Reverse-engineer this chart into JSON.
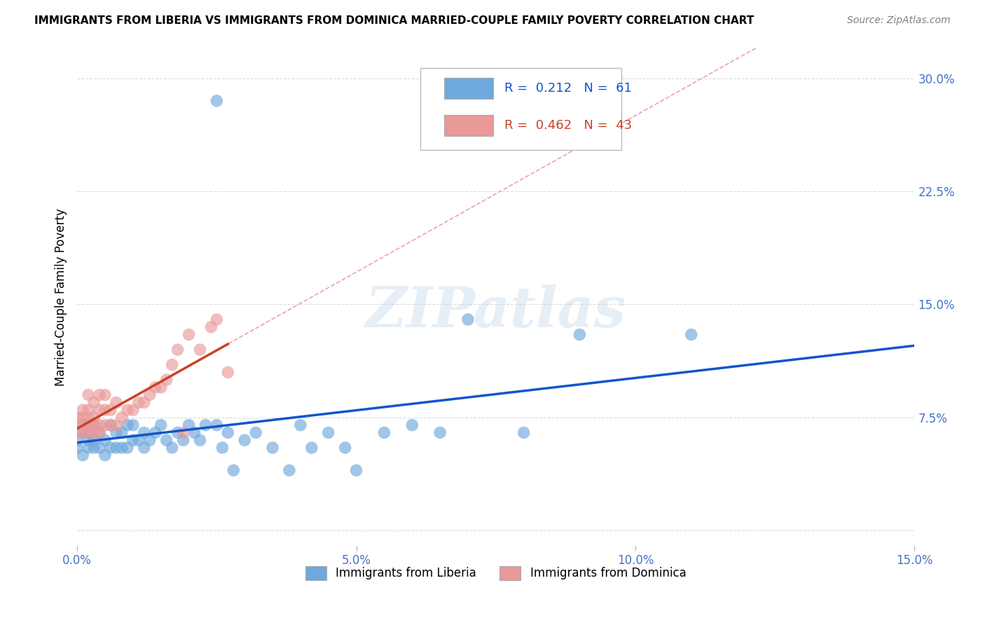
{
  "title": "IMMIGRANTS FROM LIBERIA VS IMMIGRANTS FROM DOMINICA MARRIED-COUPLE FAMILY POVERTY CORRELATION CHART",
  "source": "Source: ZipAtlas.com",
  "tick_color": "#4472c4",
  "ylabel": "Married-Couple Family Poverty",
  "xlim": [
    0.0,
    0.15
  ],
  "ylim": [
    -0.01,
    0.32
  ],
  "xticks": [
    0.0,
    0.05,
    0.1,
    0.15
  ],
  "xticklabels": [
    "0.0%",
    "5.0%",
    "10.0%",
    "15.0%"
  ],
  "yticks": [
    0.0,
    0.075,
    0.15,
    0.225,
    0.3
  ],
  "yticklabels": [
    "",
    "7.5%",
    "15.0%",
    "22.5%",
    "30.0%"
  ],
  "liberia_R": 0.212,
  "liberia_N": 61,
  "dominica_R": 0.462,
  "dominica_N": 43,
  "liberia_color": "#6fa8dc",
  "dominica_color": "#ea9999",
  "liberia_line_color": "#1155cc",
  "dominica_line_color": "#cc4125",
  "dominica_dash_color": "#e06666",
  "grid_color": "#cccccc",
  "watermark": "ZIPatlas",
  "lib_x": [
    0.0,
    0.0,
    0.001,
    0.001,
    0.001,
    0.002,
    0.002,
    0.002,
    0.002,
    0.003,
    0.003,
    0.003,
    0.004,
    0.004,
    0.005,
    0.005,
    0.006,
    0.006,
    0.007,
    0.007,
    0.008,
    0.008,
    0.009,
    0.009,
    0.01,
    0.01,
    0.011,
    0.012,
    0.012,
    0.013,
    0.014,
    0.015,
    0.016,
    0.017,
    0.018,
    0.019,
    0.02,
    0.021,
    0.022,
    0.023,
    0.025,
    0.026,
    0.027,
    0.028,
    0.03,
    0.032,
    0.035,
    0.038,
    0.04,
    0.042,
    0.045,
    0.048,
    0.05,
    0.055,
    0.06,
    0.065,
    0.07,
    0.08,
    0.09,
    0.11,
    0.025
  ],
  "lib_y": [
    0.06,
    0.055,
    0.065,
    0.07,
    0.05,
    0.055,
    0.06,
    0.065,
    0.07,
    0.055,
    0.06,
    0.07,
    0.055,
    0.065,
    0.05,
    0.06,
    0.055,
    0.07,
    0.055,
    0.065,
    0.055,
    0.065,
    0.055,
    0.07,
    0.06,
    0.07,
    0.06,
    0.055,
    0.065,
    0.06,
    0.065,
    0.07,
    0.06,
    0.055,
    0.065,
    0.06,
    0.07,
    0.065,
    0.06,
    0.07,
    0.07,
    0.055,
    0.065,
    0.04,
    0.06,
    0.065,
    0.055,
    0.04,
    0.07,
    0.055,
    0.065,
    0.055,
    0.04,
    0.065,
    0.07,
    0.065,
    0.14,
    0.065,
    0.13,
    0.13,
    0.285
  ],
  "dom_x": [
    0.0,
    0.0,
    0.001,
    0.001,
    0.001,
    0.001,
    0.002,
    0.002,
    0.002,
    0.002,
    0.002,
    0.003,
    0.003,
    0.003,
    0.003,
    0.004,
    0.004,
    0.004,
    0.004,
    0.005,
    0.005,
    0.005,
    0.006,
    0.006,
    0.007,
    0.007,
    0.008,
    0.009,
    0.01,
    0.011,
    0.012,
    0.013,
    0.014,
    0.015,
    0.016,
    0.017,
    0.018,
    0.019,
    0.02,
    0.022,
    0.024,
    0.025,
    0.027
  ],
  "dom_y": [
    0.065,
    0.075,
    0.065,
    0.07,
    0.075,
    0.08,
    0.065,
    0.07,
    0.075,
    0.08,
    0.09,
    0.065,
    0.07,
    0.075,
    0.085,
    0.065,
    0.07,
    0.08,
    0.09,
    0.07,
    0.08,
    0.09,
    0.07,
    0.08,
    0.07,
    0.085,
    0.075,
    0.08,
    0.08,
    0.085,
    0.085,
    0.09,
    0.095,
    0.095,
    0.1,
    0.11,
    0.12,
    0.065,
    0.13,
    0.12,
    0.135,
    0.14,
    0.105
  ]
}
